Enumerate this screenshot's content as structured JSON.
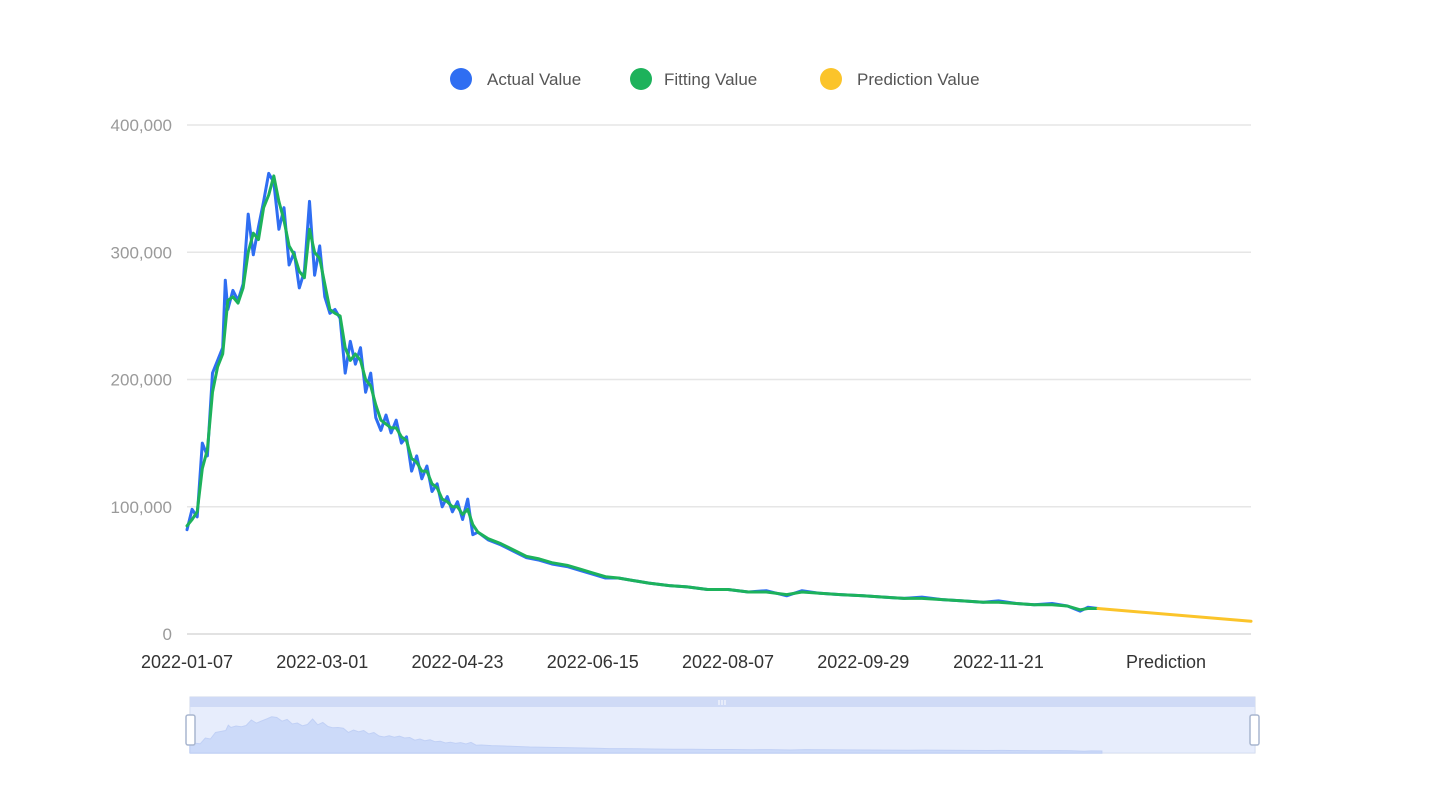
{
  "chart_data": {
    "type": "line",
    "legend": {
      "position": "top-center",
      "items": [
        {
          "label": "Actual Value",
          "color": "#2f6ef2"
        },
        {
          "label": "Fitting Value",
          "color": "#1db25b"
        },
        {
          "label": "Prediction Value",
          "color": "#fbc42a"
        }
      ]
    },
    "y_axis": {
      "ylim": [
        0,
        400000
      ],
      "ticks": [
        {
          "value": 0,
          "label": "0"
        },
        {
          "value": 100000,
          "label": "100,000"
        },
        {
          "value": 200000,
          "label": "200,000"
        },
        {
          "value": 300000,
          "label": "300,000"
        },
        {
          "value": 400000,
          "label": "400,000"
        }
      ],
      "grid": true
    },
    "x_axis": {
      "start": "2022-01-07",
      "end_observed": "2022-12-30",
      "prediction_end": "2023-04-01",
      "tick_labels": [
        {
          "date": "2022-01-07",
          "label": "2022-01-07"
        },
        {
          "date": "2022-03-01",
          "label": "2022-03-01"
        },
        {
          "date": "2022-04-23",
          "label": "2022-04-23"
        },
        {
          "date": "2022-06-15",
          "label": "2022-06-15"
        },
        {
          "date": "2022-08-07",
          "label": "2022-08-07"
        },
        {
          "date": "2022-09-29",
          "label": "2022-09-29"
        },
        {
          "date": "2022-11-21",
          "label": "2022-11-21"
        }
      ],
      "prediction_label": "Prediction"
    },
    "series": [
      {
        "name": "Actual Value",
        "color": "#2f6ef2",
        "points": [
          [
            "2022-01-07",
            82000
          ],
          [
            "2022-01-09",
            98000
          ],
          [
            "2022-01-11",
            92000
          ],
          [
            "2022-01-13",
            150000
          ],
          [
            "2022-01-15",
            140000
          ],
          [
            "2022-01-17",
            205000
          ],
          [
            "2022-01-19",
            215000
          ],
          [
            "2022-01-21",
            225000
          ],
          [
            "2022-01-22",
            278000
          ],
          [
            "2022-01-23",
            255000
          ],
          [
            "2022-01-25",
            270000
          ],
          [
            "2022-01-27",
            262000
          ],
          [
            "2022-01-29",
            275000
          ],
          [
            "2022-01-31",
            330000
          ],
          [
            "2022-02-02",
            298000
          ],
          [
            "2022-02-04",
            320000
          ],
          [
            "2022-02-06",
            340000
          ],
          [
            "2022-02-08",
            362000
          ],
          [
            "2022-02-10",
            355000
          ],
          [
            "2022-02-12",
            318000
          ],
          [
            "2022-02-14",
            335000
          ],
          [
            "2022-02-16",
            290000
          ],
          [
            "2022-02-18",
            300000
          ],
          [
            "2022-02-20",
            272000
          ],
          [
            "2022-02-22",
            285000
          ],
          [
            "2022-02-24",
            340000
          ],
          [
            "2022-02-26",
            282000
          ],
          [
            "2022-02-28",
            305000
          ],
          [
            "2022-03-02",
            265000
          ],
          [
            "2022-03-04",
            252000
          ],
          [
            "2022-03-06",
            255000
          ],
          [
            "2022-03-08",
            248000
          ],
          [
            "2022-03-10",
            205000
          ],
          [
            "2022-03-12",
            230000
          ],
          [
            "2022-03-14",
            212000
          ],
          [
            "2022-03-16",
            225000
          ],
          [
            "2022-03-18",
            190000
          ],
          [
            "2022-03-20",
            205000
          ],
          [
            "2022-03-22",
            170000
          ],
          [
            "2022-03-24",
            160000
          ],
          [
            "2022-03-26",
            172000
          ],
          [
            "2022-03-28",
            158000
          ],
          [
            "2022-03-30",
            168000
          ],
          [
            "2022-04-01",
            150000
          ],
          [
            "2022-04-03",
            155000
          ],
          [
            "2022-04-05",
            128000
          ],
          [
            "2022-04-07",
            140000
          ],
          [
            "2022-04-09",
            122000
          ],
          [
            "2022-04-11",
            132000
          ],
          [
            "2022-04-13",
            112000
          ],
          [
            "2022-04-15",
            118000
          ],
          [
            "2022-04-17",
            100000
          ],
          [
            "2022-04-19",
            108000
          ],
          [
            "2022-04-21",
            96000
          ],
          [
            "2022-04-23",
            104000
          ],
          [
            "2022-04-25",
            90000
          ],
          [
            "2022-04-27",
            106000
          ],
          [
            "2022-04-29",
            78000
          ],
          [
            "2022-05-01",
            80000
          ],
          [
            "2022-05-05",
            74000
          ],
          [
            "2022-05-10",
            70000
          ],
          [
            "2022-05-15",
            65000
          ],
          [
            "2022-05-20",
            60000
          ],
          [
            "2022-05-25",
            58000
          ],
          [
            "2022-05-30",
            55000
          ],
          [
            "2022-06-05",
            53000
          ],
          [
            "2022-06-10",
            50000
          ],
          [
            "2022-06-15",
            47000
          ],
          [
            "2022-06-20",
            44000
          ],
          [
            "2022-06-25",
            44000
          ],
          [
            "2022-07-01",
            42000
          ],
          [
            "2022-07-07",
            40000
          ],
          [
            "2022-07-15",
            38000
          ],
          [
            "2022-07-22",
            37000
          ],
          [
            "2022-07-30",
            35000
          ],
          [
            "2022-08-07",
            35000
          ],
          [
            "2022-08-15",
            33000
          ],
          [
            "2022-08-22",
            34000
          ],
          [
            "2022-08-30",
            30000
          ],
          [
            "2022-09-05",
            34000
          ],
          [
            "2022-09-12",
            32000
          ],
          [
            "2022-09-20",
            31000
          ],
          [
            "2022-09-29",
            30000
          ],
          [
            "2022-10-07",
            29000
          ],
          [
            "2022-10-15",
            28000
          ],
          [
            "2022-10-22",
            29000
          ],
          [
            "2022-10-30",
            27000
          ],
          [
            "2022-11-07",
            26000
          ],
          [
            "2022-11-15",
            25000
          ],
          [
            "2022-11-21",
            26000
          ],
          [
            "2022-11-28",
            24000
          ],
          [
            "2022-12-05",
            23000
          ],
          [
            "2022-12-12",
            24000
          ],
          [
            "2022-12-18",
            22000
          ],
          [
            "2022-12-23",
            18000
          ],
          [
            "2022-12-26",
            21000
          ],
          [
            "2022-12-30",
            20000
          ]
        ]
      },
      {
        "name": "Fitting Value",
        "color": "#1db25b",
        "points": [
          [
            "2022-01-07",
            85000
          ],
          [
            "2022-01-09",
            90000
          ],
          [
            "2022-01-11",
            96000
          ],
          [
            "2022-01-13",
            130000
          ],
          [
            "2022-01-15",
            145000
          ],
          [
            "2022-01-17",
            190000
          ],
          [
            "2022-01-19",
            210000
          ],
          [
            "2022-01-21",
            220000
          ],
          [
            "2022-01-23",
            262000
          ],
          [
            "2022-01-25",
            265000
          ],
          [
            "2022-01-27",
            260000
          ],
          [
            "2022-01-29",
            272000
          ],
          [
            "2022-01-31",
            300000
          ],
          [
            "2022-02-02",
            315000
          ],
          [
            "2022-02-04",
            310000
          ],
          [
            "2022-02-06",
            335000
          ],
          [
            "2022-02-08",
            345000
          ],
          [
            "2022-02-10",
            360000
          ],
          [
            "2022-02-12",
            340000
          ],
          [
            "2022-02-14",
            325000
          ],
          [
            "2022-02-16",
            305000
          ],
          [
            "2022-02-18",
            298000
          ],
          [
            "2022-02-20",
            285000
          ],
          [
            "2022-02-22",
            280000
          ],
          [
            "2022-02-24",
            318000
          ],
          [
            "2022-02-26",
            300000
          ],
          [
            "2022-02-28",
            295000
          ],
          [
            "2022-03-02",
            275000
          ],
          [
            "2022-03-04",
            255000
          ],
          [
            "2022-03-06",
            252000
          ],
          [
            "2022-03-08",
            250000
          ],
          [
            "2022-03-10",
            225000
          ],
          [
            "2022-03-12",
            215000
          ],
          [
            "2022-03-14",
            220000
          ],
          [
            "2022-03-16",
            215000
          ],
          [
            "2022-03-18",
            200000
          ],
          [
            "2022-03-20",
            195000
          ],
          [
            "2022-03-22",
            180000
          ],
          [
            "2022-03-24",
            168000
          ],
          [
            "2022-03-26",
            165000
          ],
          [
            "2022-03-28",
            162000
          ],
          [
            "2022-03-30",
            162000
          ],
          [
            "2022-04-01",
            155000
          ],
          [
            "2022-04-03",
            152000
          ],
          [
            "2022-04-05",
            138000
          ],
          [
            "2022-04-07",
            135000
          ],
          [
            "2022-04-09",
            128000
          ],
          [
            "2022-04-11",
            128000
          ],
          [
            "2022-04-13",
            118000
          ],
          [
            "2022-04-15",
            115000
          ],
          [
            "2022-04-17",
            106000
          ],
          [
            "2022-04-19",
            104000
          ],
          [
            "2022-04-21",
            100000
          ],
          [
            "2022-04-23",
            100000
          ],
          [
            "2022-04-25",
            94000
          ],
          [
            "2022-04-27",
            98000
          ],
          [
            "2022-04-29",
            86000
          ],
          [
            "2022-05-01",
            80000
          ],
          [
            "2022-05-05",
            75000
          ],
          [
            "2022-05-10",
            71000
          ],
          [
            "2022-05-15",
            66000
          ],
          [
            "2022-05-20",
            61000
          ],
          [
            "2022-05-25",
            59000
          ],
          [
            "2022-05-30",
            56000
          ],
          [
            "2022-06-05",
            54000
          ],
          [
            "2022-06-10",
            51000
          ],
          [
            "2022-06-15",
            48000
          ],
          [
            "2022-06-20",
            45000
          ],
          [
            "2022-06-25",
            44000
          ],
          [
            "2022-07-01",
            42000
          ],
          [
            "2022-07-07",
            40000
          ],
          [
            "2022-07-15",
            38000
          ],
          [
            "2022-07-22",
            37000
          ],
          [
            "2022-07-30",
            35000
          ],
          [
            "2022-08-07",
            35000
          ],
          [
            "2022-08-15",
            33000
          ],
          [
            "2022-08-22",
            33000
          ],
          [
            "2022-08-30",
            31000
          ],
          [
            "2022-09-05",
            33000
          ],
          [
            "2022-09-12",
            32000
          ],
          [
            "2022-09-20",
            31000
          ],
          [
            "2022-09-29",
            30000
          ],
          [
            "2022-10-07",
            29000
          ],
          [
            "2022-10-15",
            28000
          ],
          [
            "2022-10-22",
            28000
          ],
          [
            "2022-10-30",
            27000
          ],
          [
            "2022-11-07",
            26000
          ],
          [
            "2022-11-15",
            25000
          ],
          [
            "2022-11-21",
            25000
          ],
          [
            "2022-11-28",
            24000
          ],
          [
            "2022-12-05",
            23000
          ],
          [
            "2022-12-12",
            23000
          ],
          [
            "2022-12-18",
            22000
          ],
          [
            "2022-12-23",
            19000
          ],
          [
            "2022-12-26",
            20000
          ],
          [
            "2022-12-30",
            20000
          ]
        ]
      },
      {
        "name": "Prediction Value",
        "color": "#fbc42a",
        "points": [
          [
            "2022-12-30",
            20000
          ],
          [
            "2023-04-01",
            10000
          ]
        ]
      }
    ],
    "data_zoom": {
      "range_start": "2022-01-07",
      "range_end": "2023-04-01"
    }
  }
}
